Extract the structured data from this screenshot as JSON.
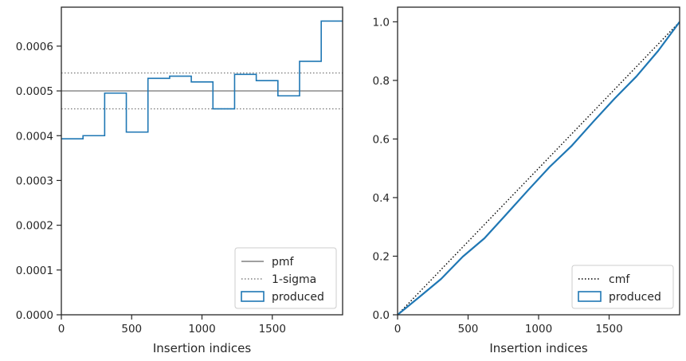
{
  "chart_data": [
    {
      "type": "step",
      "xlabel": "Insertion indices",
      "ylabel": "",
      "xlim": [
        0,
        2000
      ],
      "ylim": [
        0,
        0.000687
      ],
      "xticks": [
        0,
        500,
        1000,
        1500
      ],
      "xtick_labels": [
        "0",
        "500",
        "1000",
        "1500"
      ],
      "yticks": [
        0,
        0.0001,
        0.0002,
        0.0003,
        0.0004,
        0.0005,
        0.0006
      ],
      "ytick_labels": [
        "0.0000",
        "0.0001",
        "0.0002",
        "0.0003",
        "0.0004",
        "0.0005",
        "0.0006"
      ],
      "pmf": 0.0005,
      "sigma_bounds": [
        0.00046,
        0.00054
      ],
      "bin_edges": [
        0,
        154,
        308,
        462,
        616,
        770,
        924,
        1078,
        1232,
        1386,
        1540,
        1694,
        1848,
        2000
      ],
      "produced_values": [
        0.000393,
        0.0004,
        0.000495,
        0.000408,
        0.000528,
        0.000533,
        0.00052,
        0.00046,
        0.000537,
        0.000523,
        0.000489,
        0.000566,
        0.000656
      ],
      "legend": [
        {
          "label": "pmf",
          "style": "solid",
          "color": "#808080"
        },
        {
          "label": "1-sigma",
          "style": "dotted",
          "color": "#808080"
        },
        {
          "label": "produced",
          "style": "patch",
          "color": "#1f77b4"
        }
      ],
      "legend_position": "lower-right"
    },
    {
      "type": "line",
      "xlabel": "Insertion indices",
      "ylabel": "",
      "xlim": [
        0,
        2000
      ],
      "ylim": [
        0,
        1.05
      ],
      "xticks": [
        0,
        500,
        1000,
        1500
      ],
      "xtick_labels": [
        "0",
        "500",
        "1000",
        "1500"
      ],
      "yticks": [
        0,
        0.2,
        0.4,
        0.6,
        0.8,
        1.0
      ],
      "ytick_labels": [
        "0.0",
        "0.2",
        "0.4",
        "0.6",
        "0.8",
        "1.0"
      ],
      "cmf": {
        "x": [
          0,
          2000
        ],
        "y": [
          0,
          1.0
        ]
      },
      "produced": {
        "x": [
          0,
          154,
          308,
          462,
          616,
          770,
          924,
          1078,
          1232,
          1386,
          1540,
          1694,
          1848,
          2000
        ],
        "y": [
          0,
          0.0605,
          0.1221,
          0.1983,
          0.2611,
          0.3424,
          0.4245,
          0.5046,
          0.5754,
          0.6581,
          0.7386,
          0.8139,
          0.901,
          1.0
        ]
      },
      "legend": [
        {
          "label": "cmf",
          "style": "dotted",
          "color": "#000000"
        },
        {
          "label": "produced",
          "style": "patch",
          "color": "#1f77b4"
        }
      ],
      "legend_position": "lower-right"
    }
  ]
}
